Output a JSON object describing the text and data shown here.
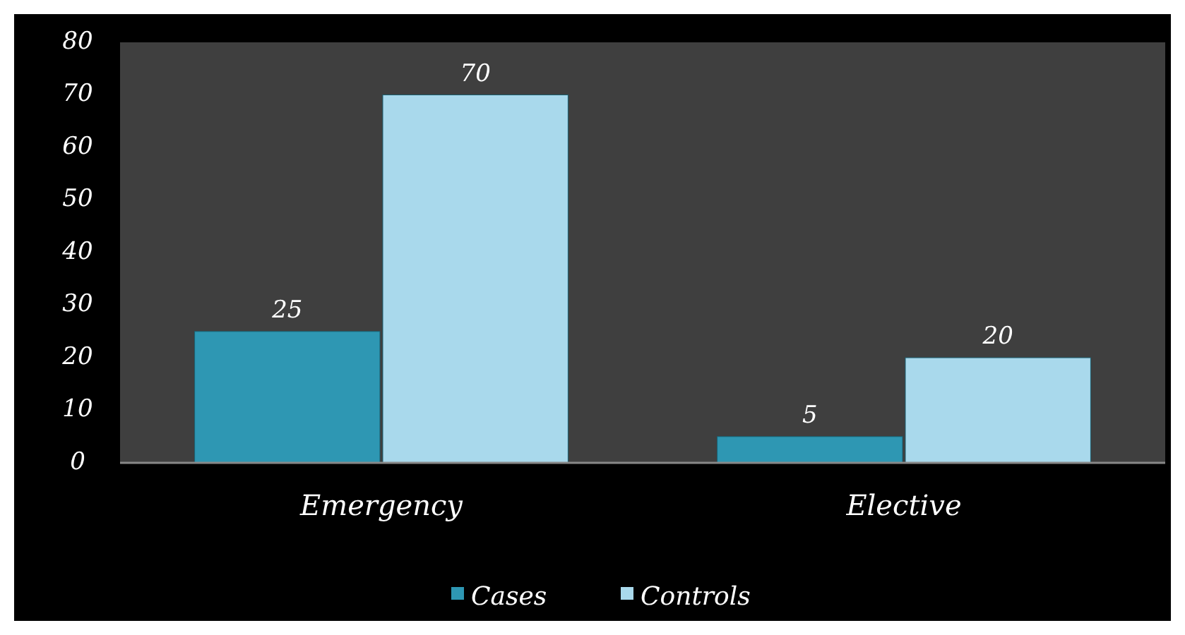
{
  "chart_data": {
    "type": "bar",
    "categories": [
      "Emergency",
      "Elective"
    ],
    "series": [
      {
        "name": "Cases",
        "color": "#2e97b3",
        "values": [
          25,
          5
        ]
      },
      {
        "name": "Controls",
        "color": "#a9d9ec",
        "values": [
          70,
          20
        ]
      }
    ],
    "ylim": [
      0,
      80
    ],
    "yticks": [
      0,
      10,
      20,
      30,
      40,
      50,
      60,
      70,
      80
    ],
    "data_labels": true,
    "legend": "bottom",
    "grid": false
  }
}
